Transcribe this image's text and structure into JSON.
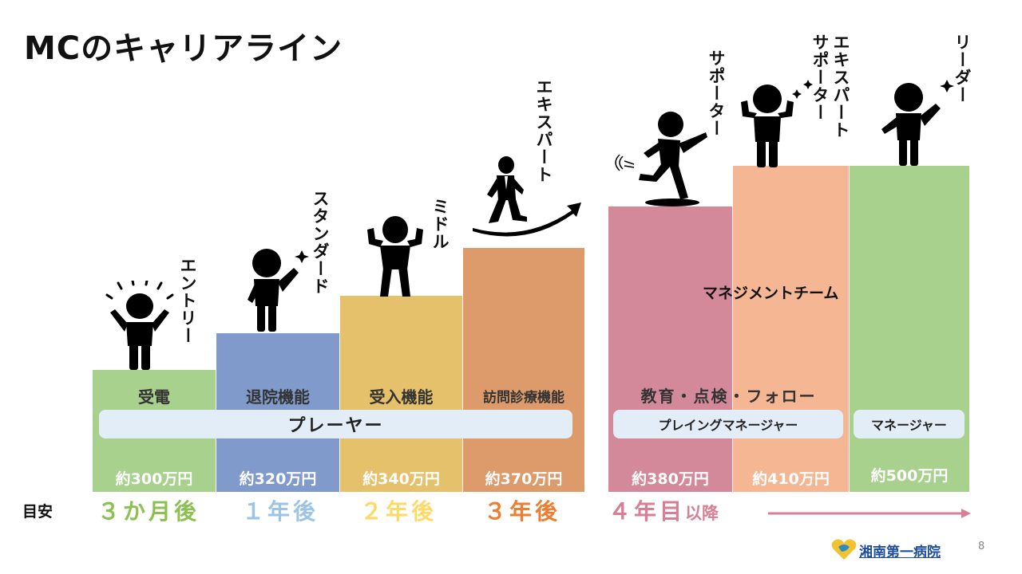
{
  "title": "MCのキャリアライン",
  "steps": [
    {
      "function": "受電",
      "salary": "約300万円",
      "timeline": "３か月後",
      "level": "エントリー",
      "color": "#a9d18e",
      "timeline_color": "#8cc152"
    },
    {
      "function": "退院機能",
      "salary": "約320万円",
      "timeline": "１年後",
      "level": "スタンダード",
      "color": "#7f9acb",
      "timeline_color": "#9dc3e6"
    },
    {
      "function": "受入機能",
      "salary": "約340万円",
      "timeline": "２年後",
      "level": "ミドル",
      "color": "#e4c16a",
      "timeline_color": "#ffd966"
    },
    {
      "function": "訪問診療機能",
      "salary": "約370万円",
      "timeline": "３年後",
      "level": "エキスパート",
      "color": "#dd9a6a",
      "timeline_color": "#ed7d31"
    },
    {
      "function": "",
      "salary": "約380万円",
      "timeline": "",
      "level": "サポーター",
      "color": "#d4899a",
      "timeline_color": "#d77f94"
    },
    {
      "function": "",
      "salary": "約410万円",
      "timeline": "",
      "level": "エキスパートサポーター",
      "color": "#f5b693",
      "timeline_color": "#d77f94"
    },
    {
      "function": "",
      "salary": "約500万円",
      "timeline": "",
      "level": "リーダー",
      "color": "#a9d18e",
      "timeline_color": "#d77f94"
    }
  ],
  "management_team_label": "マネジメントチーム",
  "management_function": "教育・点検・フォロー",
  "pills": {
    "player": "プレーヤー",
    "playing_manager": "プレイングマネージャー",
    "manager": "マネージャー"
  },
  "timeline_header": "目安",
  "timeline_later": {
    "main": "４年目",
    "suffix": "以降"
  },
  "logo_text": "湘南第一病院",
  "page_number": "8"
}
